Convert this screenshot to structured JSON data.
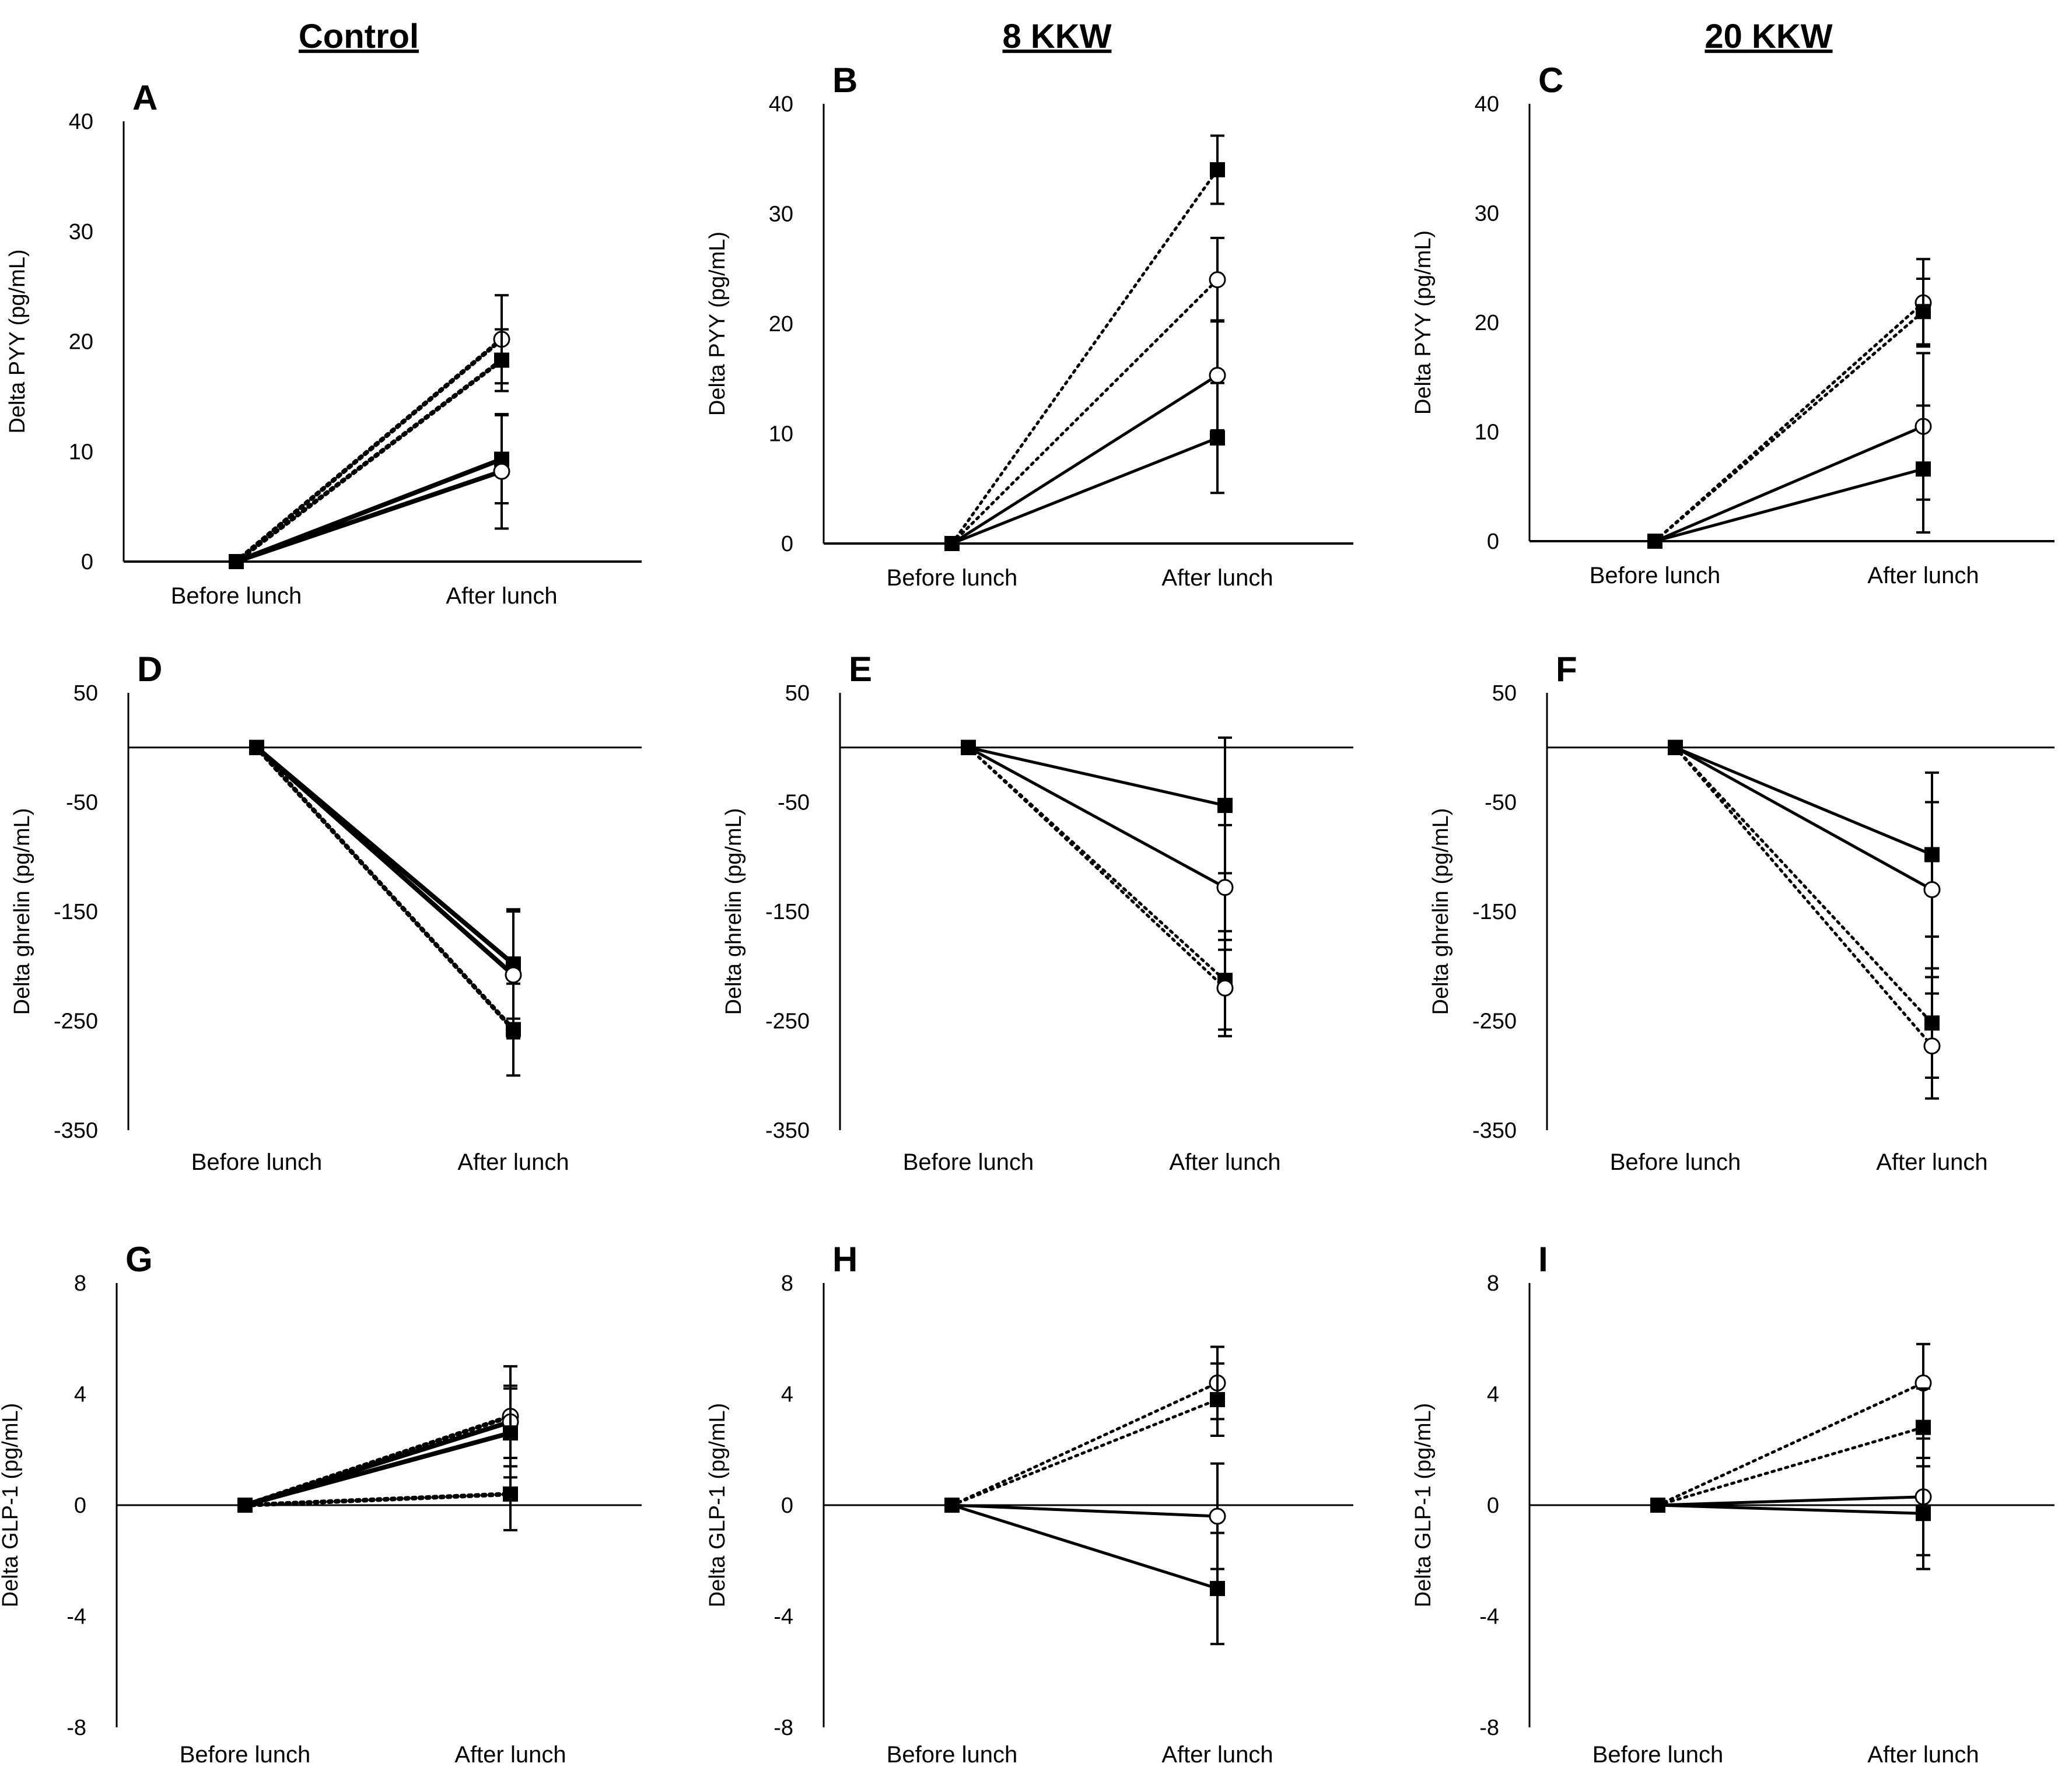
{
  "figure": {
    "column_headers": [
      "Control",
      "8 KKW",
      "20 KKW"
    ]
  },
  "chart_data": [
    {
      "panel": "A",
      "type": "line",
      "title": "A",
      "column": "Control",
      "ylabel": "Delta PYY (pg/mL)",
      "xlabel": "",
      "categories": [
        "Before lunch",
        "After lunch"
      ],
      "ylim": [
        0,
        40
      ],
      "yticks": [
        0,
        10,
        20,
        30,
        40
      ],
      "baseline": 0,
      "series": [
        {
          "name": "dotted-open",
          "style": "dotted",
          "marker": "open-circle",
          "values": [
            0,
            20.2
          ],
          "err": [
            0,
            4.0
          ]
        },
        {
          "name": "dotted-filled",
          "style": "dotted",
          "marker": "filled-square",
          "values": [
            0,
            18.3
          ],
          "err": [
            0,
            2.8
          ]
        },
        {
          "name": "solid-filled",
          "style": "solid",
          "marker": "filled-square",
          "values": [
            0,
            9.3
          ],
          "err": [
            0,
            4.0
          ]
        },
        {
          "name": "solid-open",
          "style": "solid",
          "marker": "open-circle",
          "values": [
            0,
            8.2
          ],
          "err": [
            0,
            5.2
          ]
        }
      ]
    },
    {
      "panel": "B",
      "type": "line",
      "title": "B",
      "column": "8 KKW",
      "ylabel": "Delta PYY (pg/mL)",
      "xlabel": "",
      "categories": [
        "Before lunch",
        "After lunch"
      ],
      "ylim": [
        0,
        40
      ],
      "yticks": [
        0,
        10,
        20,
        30,
        40
      ],
      "baseline": 0,
      "series": [
        {
          "name": "dotted-filled",
          "style": "dotted",
          "marker": "filled-square",
          "values": [
            0,
            34.0
          ],
          "err": [
            0,
            3.1
          ]
        },
        {
          "name": "dotted-open",
          "style": "dotted",
          "marker": "open-circle",
          "values": [
            0,
            24.0
          ],
          "err": [
            0,
            3.8
          ]
        },
        {
          "name": "solid-open",
          "style": "solid",
          "marker": "open-circle",
          "values": [
            0,
            15.3
          ],
          "err": [
            0,
            5.0
          ]
        },
        {
          "name": "solid-filled",
          "style": "solid",
          "marker": "filled-square",
          "values": [
            0,
            9.6
          ],
          "err": [
            0,
            5.0
          ]
        }
      ]
    },
    {
      "panel": "C",
      "type": "line",
      "title": "C",
      "column": "20 KKW",
      "ylabel": "Delta PYY (pg/mL)",
      "xlabel": "",
      "categories": [
        "Before lunch",
        "After lunch"
      ],
      "ylim": [
        0,
        40
      ],
      "yticks": [
        0,
        10,
        20,
        30,
        40
      ],
      "baseline": 0,
      "series": [
        {
          "name": "dotted-open",
          "style": "dotted",
          "marker": "open-circle",
          "values": [
            0,
            21.8
          ],
          "err": [
            0,
            4.0
          ]
        },
        {
          "name": "dotted-filled",
          "style": "dotted",
          "marker": "filled-square",
          "values": [
            0,
            21.0
          ],
          "err": [
            0,
            3.0
          ]
        },
        {
          "name": "solid-open",
          "style": "solid",
          "marker": "open-circle",
          "values": [
            0,
            10.5
          ],
          "err": [
            0,
            6.7
          ]
        },
        {
          "name": "solid-filled",
          "style": "solid",
          "marker": "filled-square",
          "values": [
            0,
            6.6
          ],
          "err": [
            0,
            5.8
          ]
        }
      ]
    },
    {
      "panel": "D",
      "type": "line",
      "title": "D",
      "column": "Control",
      "ylabel": "Delta ghrelin (pg/mL)",
      "xlabel": "",
      "categories": [
        "Before lunch",
        "After lunch"
      ],
      "ylim": [
        -350,
        50
      ],
      "yticks": [
        -350,
        -250,
        -150,
        -50,
        50
      ],
      "baseline": 0,
      "series": [
        {
          "name": "solid-filled",
          "style": "solid",
          "marker": "filled-square",
          "values": [
            0,
            -198
          ],
          "err": [
            0,
            50
          ]
        },
        {
          "name": "solid-open",
          "style": "solid",
          "marker": "open-circle",
          "values": [
            0,
            -208
          ],
          "err": [
            0,
            58
          ]
        },
        {
          "name": "dotted-filled",
          "style": "dotted",
          "marker": "filled-square",
          "values": [
            0,
            -258
          ],
          "err": [
            0,
            42
          ]
        }
      ]
    },
    {
      "panel": "E",
      "type": "line",
      "title": "E",
      "column": "8 KKW",
      "ylabel": "Delta ghrelin (pg/mL)",
      "xlabel": "",
      "categories": [
        "Before lunch",
        "After lunch"
      ],
      "ylim": [
        -350,
        50
      ],
      "yticks": [
        -350,
        -250,
        -150,
        -50,
        50
      ],
      "baseline": 0,
      "series": [
        {
          "name": "solid-filled",
          "style": "solid",
          "marker": "filled-square",
          "values": [
            0,
            -53
          ],
          "err": [
            0,
            62
          ]
        },
        {
          "name": "solid-open",
          "style": "solid",
          "marker": "open-circle",
          "values": [
            0,
            -128
          ],
          "err": [
            0,
            57
          ]
        },
        {
          "name": "dotted-filled",
          "style": "dotted",
          "marker": "filled-square",
          "values": [
            0,
            -213
          ],
          "err": [
            0,
            45
          ]
        },
        {
          "name": "dotted-open",
          "style": "dotted",
          "marker": "open-circle",
          "values": [
            0,
            -220
          ],
          "err": [
            0,
            44
          ]
        }
      ]
    },
    {
      "panel": "F",
      "type": "line",
      "title": "F",
      "column": "20 KKW",
      "ylabel": "Delta ghrelin (pg/mL)",
      "xlabel": "",
      "categories": [
        "Before lunch",
        "After lunch"
      ],
      "ylim": [
        -350,
        50
      ],
      "yticks": [
        -350,
        -250,
        -150,
        -50,
        50
      ],
      "baseline": 0,
      "series": [
        {
          "name": "solid-filled",
          "style": "solid",
          "marker": "filled-square",
          "values": [
            0,
            -98
          ],
          "err": [
            0,
            75
          ]
        },
        {
          "name": "solid-open",
          "style": "solid",
          "marker": "open-circle",
          "values": [
            0,
            -130
          ],
          "err": [
            0,
            80
          ]
        },
        {
          "name": "dotted-filled",
          "style": "dotted",
          "marker": "filled-square",
          "values": [
            0,
            -252
          ],
          "err": [
            0,
            50
          ]
        },
        {
          "name": "dotted-open",
          "style": "dotted",
          "marker": "open-circle",
          "values": [
            0,
            -273
          ],
          "err": [
            0,
            48
          ]
        }
      ]
    },
    {
      "panel": "G",
      "type": "line",
      "title": "G",
      "column": "Control",
      "ylabel": "Delta GLP-1 (pg/mL)",
      "xlabel": "",
      "categories": [
        "Before lunch",
        "After lunch"
      ],
      "ylim": [
        -8,
        8
      ],
      "yticks": [
        -8,
        -4,
        0,
        4,
        8
      ],
      "baseline": 0,
      "series": [
        {
          "name": "dotted-open",
          "style": "dotted",
          "marker": "open-circle",
          "values": [
            0,
            3.2
          ],
          "err": [
            0,
            1.8
          ]
        },
        {
          "name": "solid-open",
          "style": "solid",
          "marker": "open-circle",
          "values": [
            0,
            3.0
          ],
          "err": [
            0,
            1.3
          ]
        },
        {
          "name": "solid-filled",
          "style": "solid",
          "marker": "filled-square",
          "values": [
            0,
            2.6
          ],
          "err": [
            0,
            1.6
          ]
        },
        {
          "name": "dotted-filled",
          "style": "dotted",
          "marker": "filled-square",
          "values": [
            0,
            0.4
          ],
          "err": [
            0,
            1.3
          ]
        }
      ]
    },
    {
      "panel": "H",
      "type": "line",
      "title": "H",
      "column": "8 KKW",
      "ylabel": "Delta GLP-1 (pg/mL)",
      "xlabel": "",
      "categories": [
        "Before lunch",
        "After lunch"
      ],
      "ylim": [
        -8,
        8
      ],
      "yticks": [
        -8,
        -4,
        0,
        4,
        8
      ],
      "baseline": 0,
      "series": [
        {
          "name": "dotted-open",
          "style": "dotted",
          "marker": "open-circle",
          "values": [
            0,
            4.4
          ],
          "err": [
            0,
            1.3
          ]
        },
        {
          "name": "dotted-filled",
          "style": "dotted",
          "marker": "filled-square",
          "values": [
            0,
            3.8
          ],
          "err": [
            0,
            1.3
          ]
        },
        {
          "name": "solid-open",
          "style": "solid",
          "marker": "open-circle",
          "values": [
            0,
            -0.4
          ],
          "err": [
            0,
            1.9
          ]
        },
        {
          "name": "solid-filled",
          "style": "solid",
          "marker": "filled-square",
          "values": [
            0,
            -3.0
          ],
          "err": [
            0,
            2.0
          ]
        }
      ]
    },
    {
      "panel": "I",
      "type": "line",
      "title": "I",
      "column": "20 KKW",
      "ylabel": "Delta GLP-1 (pg/mL)",
      "xlabel": "",
      "categories": [
        "Before lunch",
        "After lunch"
      ],
      "ylim": [
        -8,
        8
      ],
      "yticks": [
        -8,
        -4,
        0,
        4,
        8
      ],
      "baseline": 0,
      "series": [
        {
          "name": "dotted-open",
          "style": "dotted",
          "marker": "open-circle",
          "values": [
            0,
            4.4
          ],
          "err": [
            0,
            1.4
          ]
        },
        {
          "name": "dotted-filled",
          "style": "dotted",
          "marker": "filled-square",
          "values": [
            0,
            2.8
          ],
          "err": [
            0,
            1.4
          ]
        },
        {
          "name": "solid-open",
          "style": "solid",
          "marker": "open-circle",
          "values": [
            0,
            0.3
          ],
          "err": [
            0,
            2.1
          ]
        },
        {
          "name": "solid-filled",
          "style": "solid",
          "marker": "filled-square",
          "values": [
            0,
            -0.3
          ],
          "err": [
            0,
            2.0
          ]
        }
      ]
    }
  ]
}
